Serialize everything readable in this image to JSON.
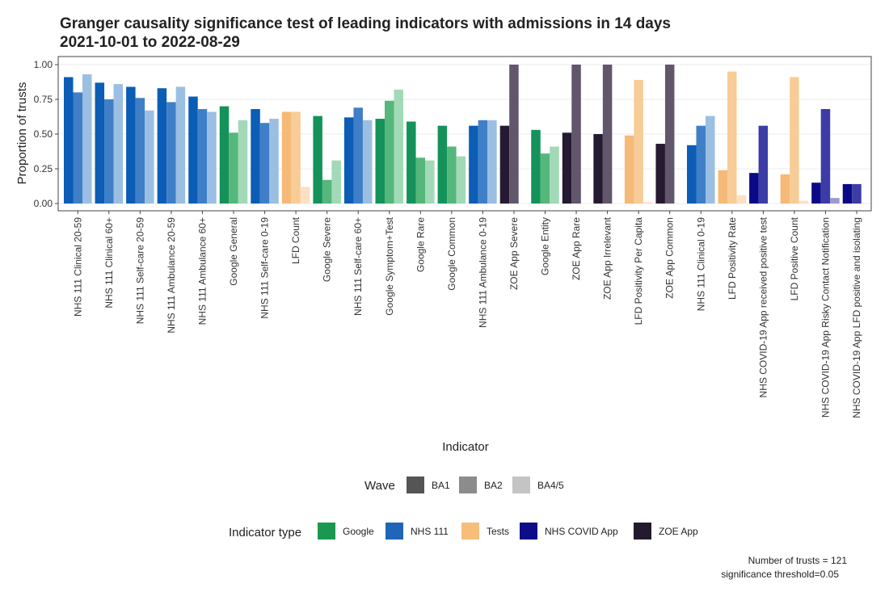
{
  "chart_data": {
    "type": "bar",
    "title": "Granger causality significance test of leading indicators with admissions in 14 days",
    "subtitle": "2021-10-01 to 2022-08-29",
    "xlabel": "Indicator",
    "ylabel": "Proportion of trusts",
    "ylim": [
      0,
      1.05
    ],
    "yticks": [
      0.0,
      0.25,
      0.5,
      0.75,
      1.0
    ],
    "ytick_labels": [
      "0.00",
      "0.25",
      "0.50",
      "0.75",
      "1.00"
    ],
    "series_names": [
      "BA1",
      "BA2",
      "BA4/5"
    ],
    "categories": [
      "NHS 111 Clinical 20-59",
      "NHS 111 Clinical 60+",
      "NHS 111 Self-care 20-59",
      "NHS 111 Ambulance 20-59",
      "NHS 111 Ambulance 60+",
      "Google General",
      "NHS 111 Self-care 0-19",
      "LFD Count",
      "Google Severe",
      "NHS 111 Self-care 60+",
      "Google Symptom+Test",
      "Google Rare",
      "Google Common",
      "NHS 111 Ambulance 0-19",
      "ZOE App Severe",
      "Google Entity",
      "ZOE App Rare",
      "ZOE App Irrelevant",
      "LFD Positivity Per Capita",
      "ZOE App Common",
      "NHS 111 Clinical 0-19",
      "LFD Positivity Rate",
      "NHS COVID-19 App received positive test",
      "LFD Positive Count",
      "NHS COVID-19 App Risky Contact Notification",
      "NHS COVID-19 App LFD positive and isolating"
    ],
    "indicator_types": [
      "NHS 111",
      "NHS 111",
      "NHS 111",
      "NHS 111",
      "NHS 111",
      "Google",
      "NHS 111",
      "Tests",
      "Google",
      "NHS 111",
      "Google",
      "Google",
      "Google",
      "NHS 111",
      "ZOE App",
      "Google",
      "ZOE App",
      "ZOE App",
      "Tests",
      "ZOE App",
      "NHS 111",
      "Tests",
      "NHS COVID App",
      "Tests",
      "NHS COVID App",
      "NHS COVID App"
    ],
    "values": [
      [
        0.91,
        0.8,
        0.93
      ],
      [
        0.87,
        0.75,
        0.86
      ],
      [
        0.84,
        0.76,
        0.67
      ],
      [
        0.83,
        0.73,
        0.84
      ],
      [
        0.77,
        0.68,
        0.66
      ],
      [
        0.7,
        0.51,
        0.6
      ],
      [
        0.68,
        0.58,
        0.61
      ],
      [
        0.66,
        0.66,
        0.12
      ],
      [
        0.63,
        0.17,
        0.31
      ],
      [
        0.62,
        0.69,
        0.6
      ],
      [
        0.61,
        0.74,
        0.82
      ],
      [
        0.59,
        0.33,
        0.31
      ],
      [
        0.56,
        0.41,
        0.34
      ],
      [
        0.56,
        0.6,
        0.6
      ],
      [
        0.56,
        1.0,
        null
      ],
      [
        0.53,
        0.36,
        0.41
      ],
      [
        0.51,
        1.0,
        null
      ],
      [
        0.5,
        1.0,
        null
      ],
      [
        0.49,
        0.89,
        0.01
      ],
      [
        0.43,
        1.0,
        null
      ],
      [
        0.42,
        0.56,
        0.63
      ],
      [
        0.24,
        0.95,
        0.06
      ],
      [
        0.22,
        0.56,
        null
      ],
      [
        0.21,
        0.91,
        0.02
      ],
      [
        0.15,
        0.68,
        0.04
      ],
      [
        0.14,
        0.14,
        null
      ]
    ],
    "legend_position": "bottom",
    "caption": [
      "Number of trusts = 121",
      "significance threshold=0.05"
    ]
  },
  "legend": {
    "wave_title": "Wave",
    "wave_items": [
      {
        "label": "BA1",
        "color": "#555555"
      },
      {
        "label": "BA2",
        "color": "#8c8c8c"
      },
      {
        "label": "BA4/5",
        "color": "#c4c4c4"
      }
    ],
    "type_title": "Indicator type",
    "type_items": [
      {
        "label": "Google",
        "color": "#1a9850"
      },
      {
        "label": "NHS 111",
        "color": "#1f65b8"
      },
      {
        "label": "Tests",
        "color": "#f6be7a"
      },
      {
        "label": "NHS COVID App",
        "color": "#0d0d8a"
      },
      {
        "label": "ZOE App",
        "color": "#231a2e"
      }
    ]
  },
  "type_colors": {
    "Google": [
      "#14925a",
      "#55b77b",
      "#a2d9b6"
    ],
    "NHS 111": [
      "#0b5db5",
      "#3f7fc7",
      "#9bbfe2"
    ],
    "Tests": [
      "#f5b978",
      "#f8cc97",
      "#fbe0c3"
    ],
    "NHS COVID App": [
      "#0a0a86",
      "#3c3ca6",
      "#9b9bd0"
    ],
    "ZOE App": [
      "#251a31",
      "#62566c",
      "#a8a0ae"
    ]
  }
}
